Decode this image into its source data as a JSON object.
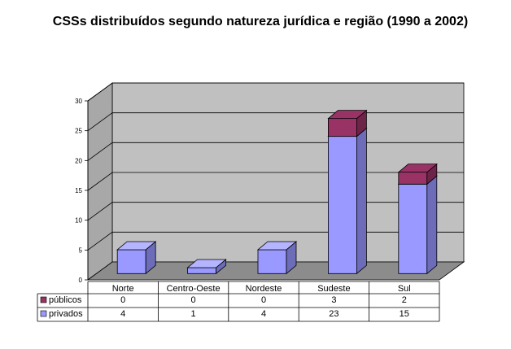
{
  "chart_data": {
    "type": "bar",
    "stacked": true,
    "three_d": true,
    "title": "CSSs distribuídos segundo natureza jurídica e região (1990 a 2002)",
    "categories": [
      "Norte",
      "Centro-Oeste",
      "Nordeste",
      "Sudeste",
      "Sul"
    ],
    "series": [
      {
        "name": "privados",
        "values": [
          4,
          1,
          4,
          23,
          15
        ],
        "color": "#9999ff",
        "side": "#6c6cb9",
        "top": "#b4b4ff"
      },
      {
        "name": "públicos",
        "values": [
          0,
          0,
          0,
          3,
          2
        ],
        "color": "#993366",
        "side": "#6e2449",
        "top": "#993366"
      }
    ],
    "ylim": [
      0,
      30
    ],
    "yticks": [
      0,
      5,
      10,
      15,
      20,
      25,
      30
    ],
    "grid": true,
    "legend": "data-table",
    "colors": {
      "wall": "#c0c0c0",
      "floor": "#8c8c8c",
      "gridline": "#000000"
    }
  }
}
